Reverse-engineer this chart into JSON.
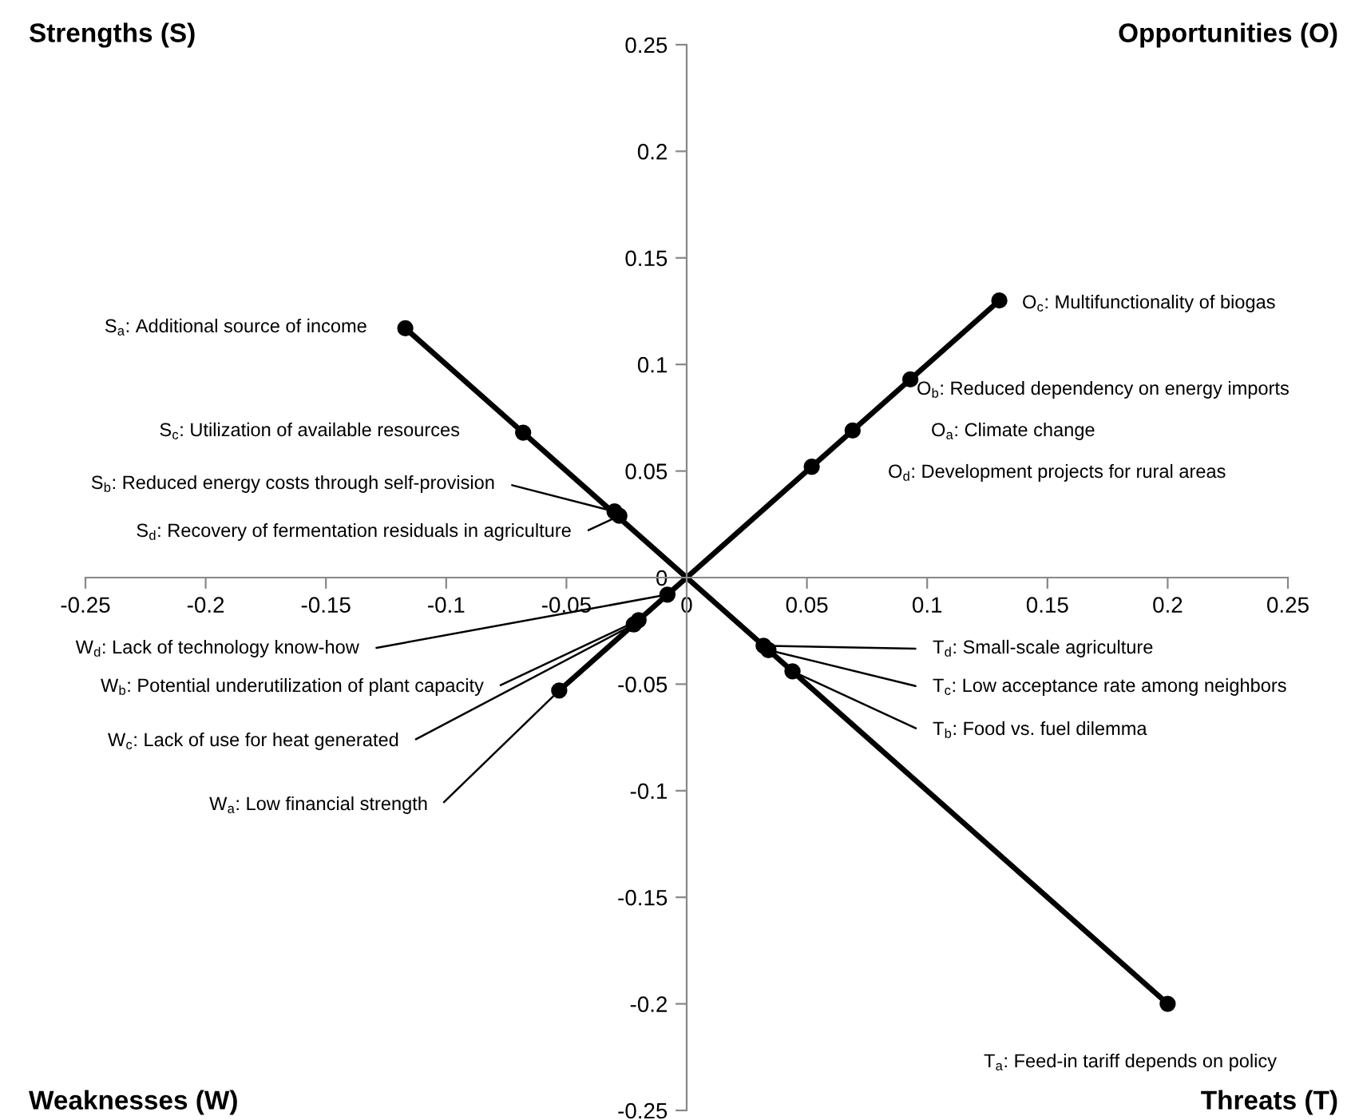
{
  "chart_data": {
    "type": "line",
    "xlim": [
      -0.25,
      0.25
    ],
    "ylim": [
      -0.25,
      0.25
    ],
    "xticks": [
      -0.25,
      -0.2,
      -0.15,
      -0.1,
      -0.05,
      0,
      0.05,
      0.1,
      0.15,
      0.2,
      0.25
    ],
    "yticks": [
      0.25,
      0.2,
      0.15,
      0.1,
      0.05,
      0,
      -0.05,
      -0.1,
      -0.15,
      -0.2,
      -0.25
    ],
    "grid": false,
    "legend": false,
    "marker": "none",
    "series": [
      {
        "color": "#000000",
        "x": [
          -0.117,
          0.2
        ],
        "values": [
          0.117,
          -0.2
        ]
      },
      {
        "color": "#000000",
        "x": [
          -0.053,
          0.13
        ],
        "values": [
          -0.053,
          0.13
        ]
      },
      {
        "type": "scatter",
        "color": "#000000",
        "marker": "circle",
        "x": [
          -0.117,
          -0.068,
          -0.03,
          -0.028,
          0.052,
          0.069,
          0.093,
          0.13,
          -0.008,
          -0.02,
          -0.022,
          -0.053,
          0.032,
          0.034,
          0.044,
          0.2
        ],
        "values": [
          0.117,
          0.068,
          0.031,
          0.029,
          0.052,
          0.069,
          0.093,
          0.13,
          -0.008,
          -0.02,
          -0.022,
          -0.053,
          -0.032,
          -0.034,
          -0.044,
          -0.2
        ]
      }
    ],
    "annotations": [
      "Strengths (S)",
      "Opportunities (O)",
      "Weaknesses (W)",
      "Threats (T)",
      {
        "text": "S$_{a}$: Additional source of income",
        "x": -0.117,
        "y": 0.117
      },
      "S$_{c}$: Utilization of available resources",
      {
        "text": "S$_{b}$: Reduced energy costs through self-provision",
        "x": -0.03,
        "y": 0.031
      },
      {
        "text": "S$_{d}$: Recovery of fermentation residuals in agriculture",
        "x": -0.028,
        "y": 0.029
      },
      {
        "text": "O$_{c}$: Multifunctionality of biogas",
        "x": 0.13,
        "y": 0.13
      },
      {
        "text": "O$_{b}$: Reduced dependency on energy imports",
        "x": 0.093,
        "y": 0.093
      },
      "O$_{a}$: Climate change",
      "O$_{d}$: Development projects for rural areas",
      {
        "text": "W$_{d}$: Lack of technology know-how",
        "x": -0.008,
        "y": -0.008
      },
      {
        "text": "W$_{b}$: Potential underutilization of plant capacity",
        "x": -0.02,
        "y": -0.02
      },
      {
        "text": "W$_{c}$: Lack of use for heat generated",
        "x": -0.022,
        "y": -0.022
      },
      {
        "text": "W$_{a}$: Low financial strength",
        "x": -0.053,
        "y": -0.053
      },
      {
        "text": "T$_{d}$: Small-scale agriculture",
        "x": 0.032,
        "y": -0.032
      },
      {
        "text": "T$_{c}$: Low acceptance rate among neighbors",
        "x": 0.034,
        "y": -0.034
      },
      {
        "text": "T$_{b}$: Food vs. fuel dilemma",
        "x": 0.044,
        "y": -0.044
      },
      {
        "text": "T$_{a}$: Feed-in tariff depends on policy",
        "x": 0.2,
        "y": -0.2
      }
    ]
  }
}
